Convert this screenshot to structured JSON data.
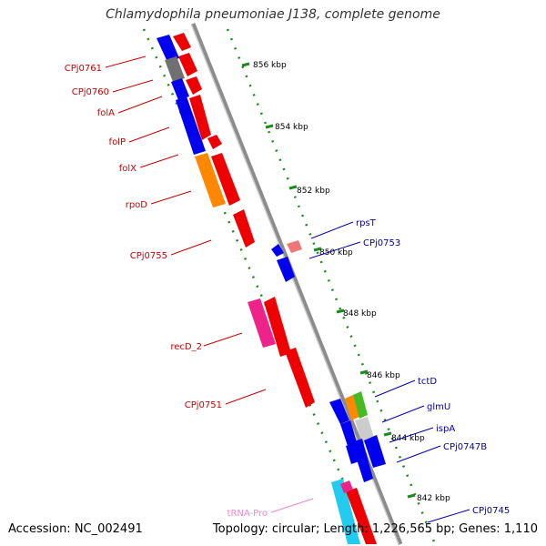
{
  "header": {
    "title": "Chlamydophila pneumoniae J138, complete genome"
  },
  "footer": {
    "accession": "Accession: NC_002491",
    "summary": "Topology: circular; Length: 1,226,565 bp; Genes: 1,110"
  },
  "colors": {
    "backbone": "#8c8c8c",
    "ruler_dots": "#1a8a1a",
    "label_red": "#cc0000",
    "label_blue": "#0000aa",
    "label_pink": "#ee88cc"
  },
  "ruler": [
    {
      "label": "856 kbp"
    },
    {
      "label": "854 kbp"
    },
    {
      "label": "852 kbp"
    },
    {
      "label": "850 kbp"
    },
    {
      "label": "848 kbp"
    },
    {
      "label": "846 kbp"
    },
    {
      "label": "844 kbp"
    },
    {
      "label": "842 kbp"
    }
  ],
  "genes_left": [
    {
      "label": "CPj0761"
    },
    {
      "label": "CPj0760"
    },
    {
      "label": "folA"
    },
    {
      "label": "folP"
    },
    {
      "label": "folX"
    },
    {
      "label": "rpoD"
    },
    {
      "label": "CPj0755"
    },
    {
      "label": "recD_2"
    },
    {
      "label": "CPj0751"
    },
    {
      "label": "tRNA-Pro"
    }
  ],
  "genes_right": [
    {
      "label": "rpsT"
    },
    {
      "label": "CPj0753"
    },
    {
      "label": "tctD"
    },
    {
      "label": "glmU"
    },
    {
      "label": "ispA"
    },
    {
      "label": "CPj0747B"
    },
    {
      "label": "CPj0745"
    }
  ]
}
